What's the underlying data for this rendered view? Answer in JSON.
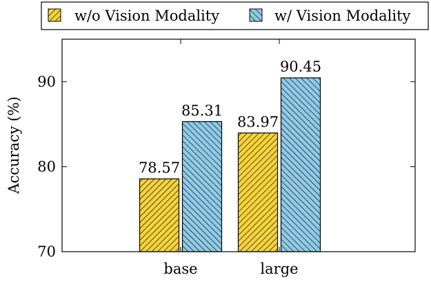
{
  "chart_data": {
    "type": "bar",
    "categories": [
      "base",
      "large"
    ],
    "series": [
      {
        "name": "w/o Vision Modality",
        "values": [
          78.57,
          83.97
        ],
        "color": "#f5d33a",
        "hatch": "north-east-lines"
      },
      {
        "name": "w/ Vision Modality",
        "values": [
          85.31,
          90.45
        ],
        "color": "#8fcbe6",
        "hatch": "north-west-lines"
      }
    ],
    "value_labels": [
      "78.57",
      "83.97",
      "85.31",
      "90.45"
    ],
    "ylabel": "Accuracy (%)",
    "xlabel": "",
    "ylim": [
      70,
      95
    ],
    "yticks": [
      70,
      80,
      90
    ],
    "ytick_labels": [
      "70",
      "80",
      "90"
    ],
    "grid": false,
    "legend_position": "top-outside"
  }
}
